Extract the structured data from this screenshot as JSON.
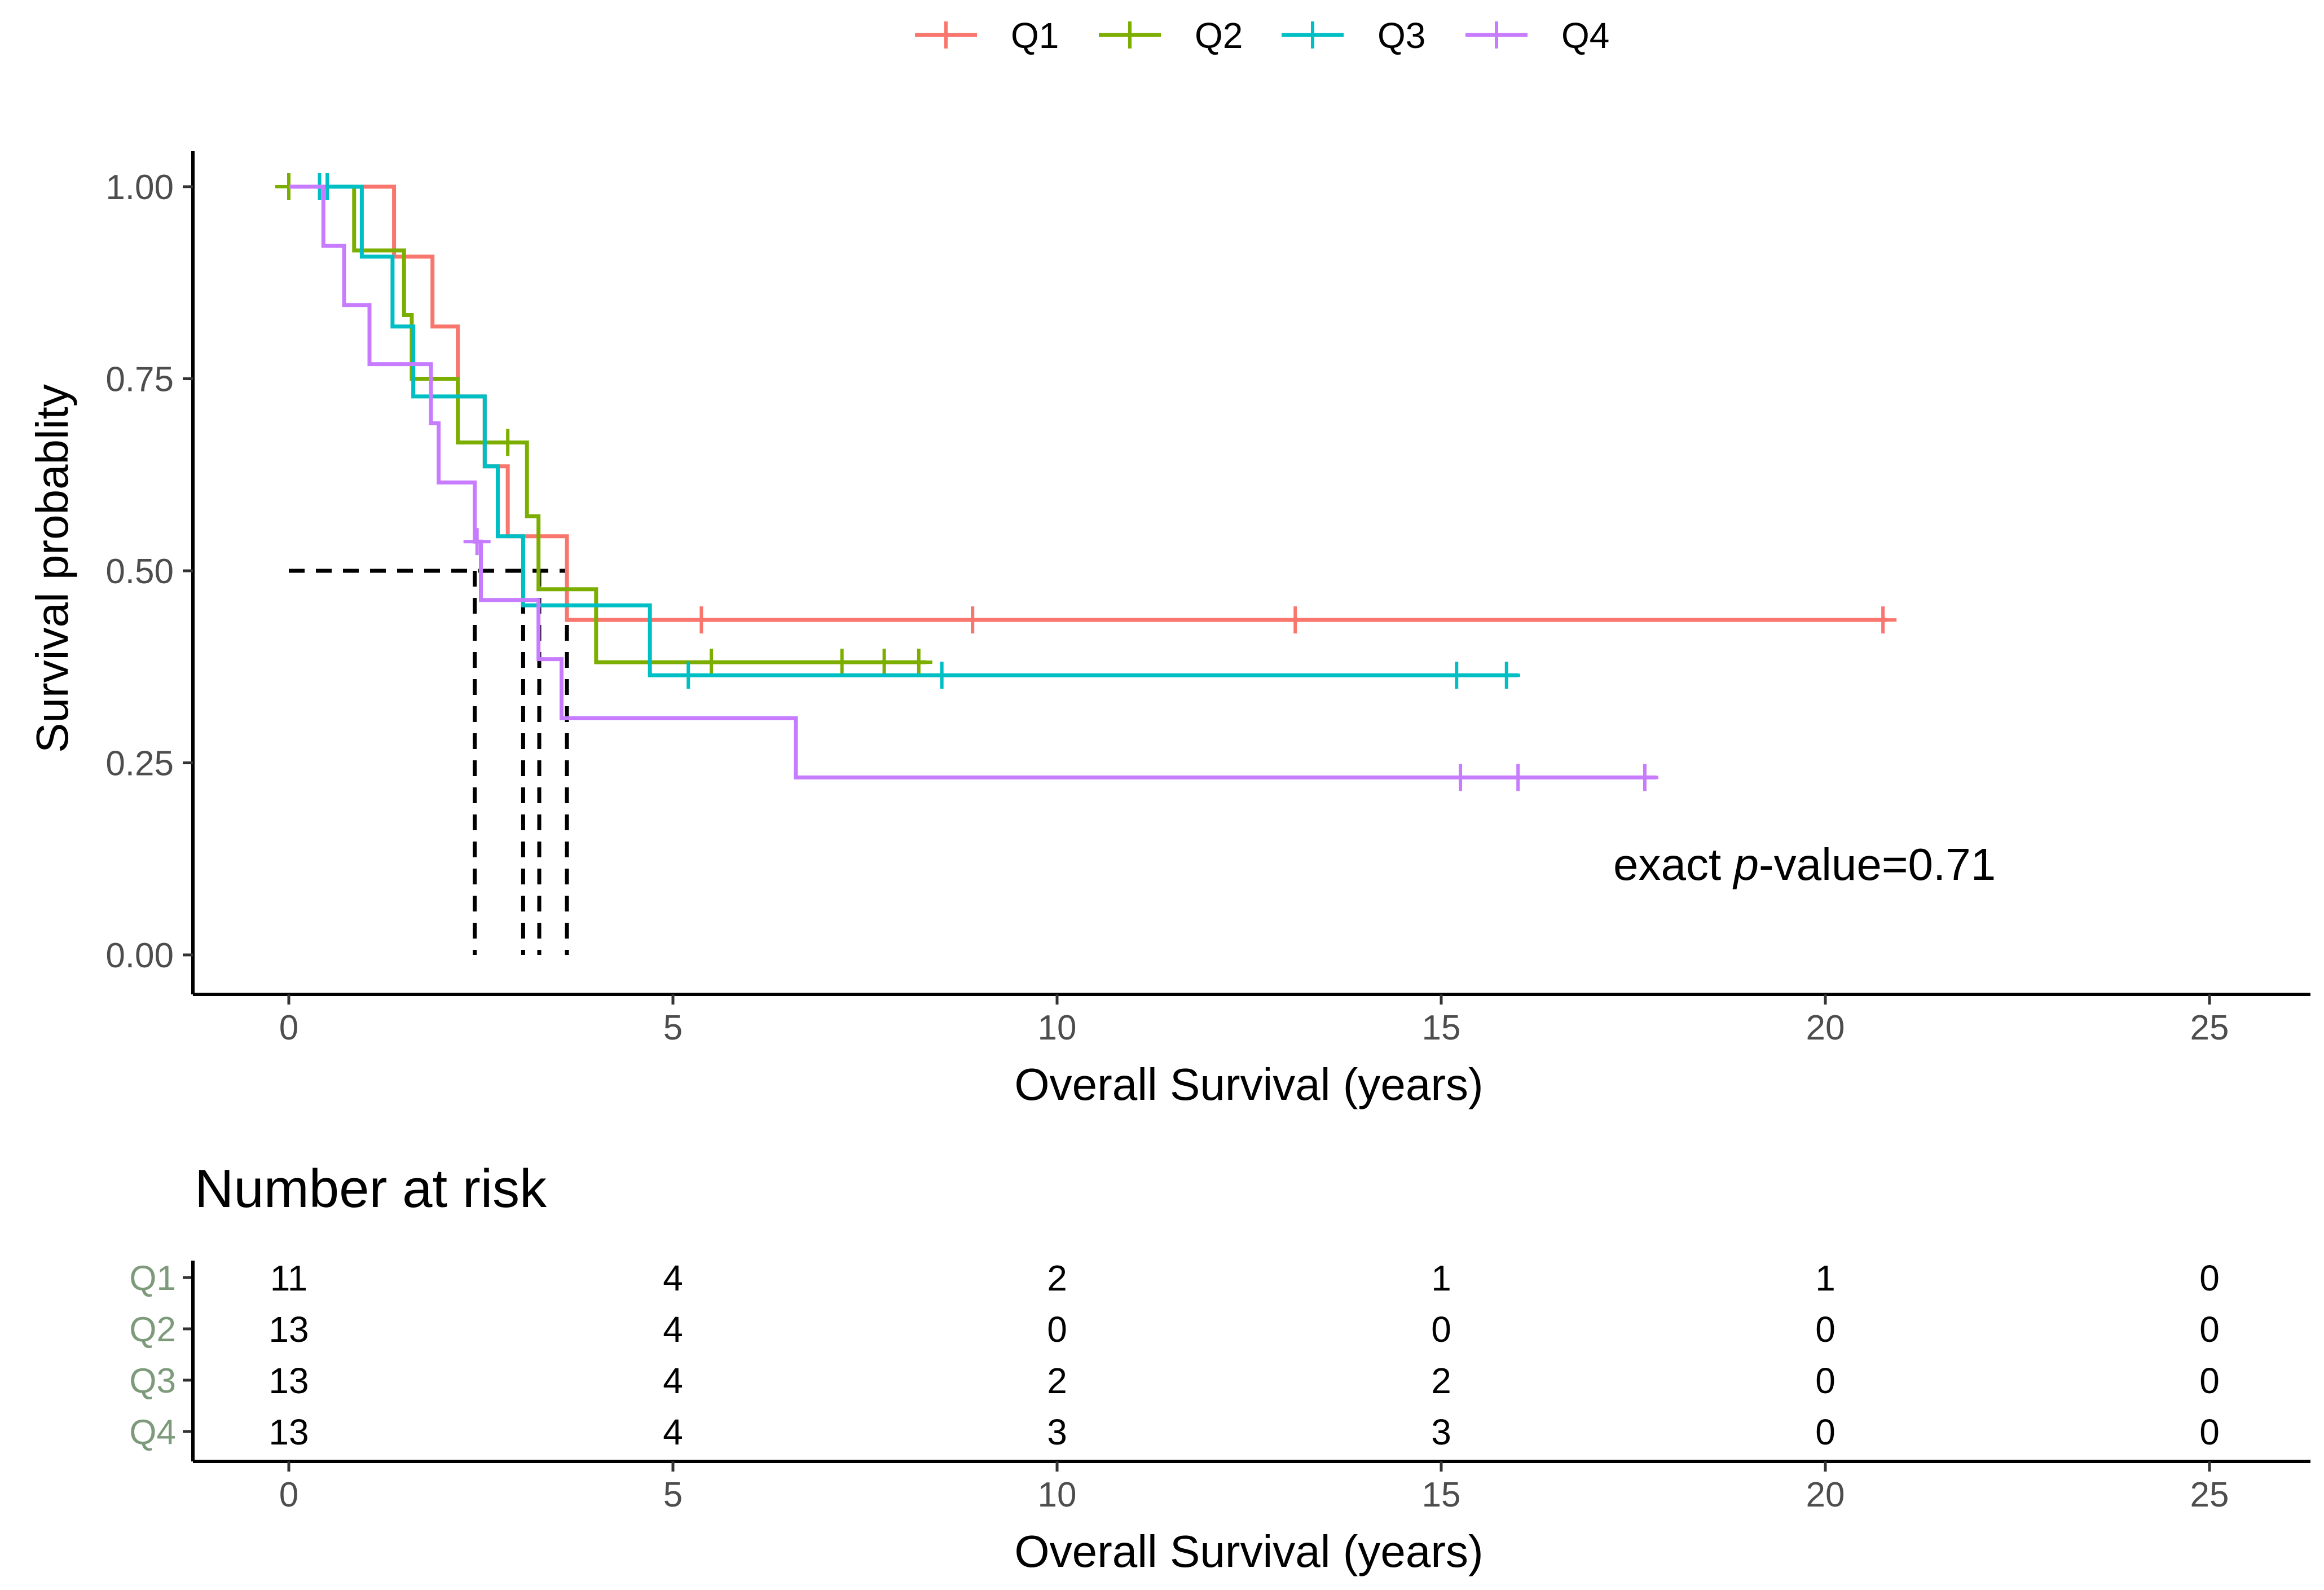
{
  "chart_data": {
    "type": "line",
    "subtype": "kaplan-meier",
    "xlabel": "Overall Survival (years)",
    "ylabel": "Survival probablity",
    "xlim": [
      -1.25,
      26.5
    ],
    "ylim": [
      -0.05,
      1.05
    ],
    "x_ticks": [
      0,
      5,
      10,
      15,
      20,
      25
    ],
    "y_ticks": [
      0.0,
      0.25,
      0.5,
      0.75,
      1.0
    ],
    "y_tick_labels": [
      "0.00",
      "0.25",
      "0.50",
      "0.75",
      "1.00"
    ],
    "grid": false,
    "legend_position": "top",
    "annotation": {
      "prefix": "exact ",
      "italic": "p",
      "suffix": "-value=0.71",
      "x": 22.5,
      "y": 0.115
    },
    "median_lines": [
      2.42,
      3.05,
      3.26,
      3.62
    ],
    "series": [
      {
        "name": "Q1",
        "color": "#F8766D",
        "steps": [
          [
            0,
            1.0
          ],
          [
            1.37,
            0.909
          ],
          [
            1.87,
            0.818
          ],
          [
            2.2,
            0.727
          ],
          [
            2.55,
            0.636
          ],
          [
            2.85,
            0.545
          ],
          [
            3.62,
            0.436
          ],
          [
            20.8,
            0.436
          ]
        ],
        "censors": [
          [
            5.37,
            0.436
          ],
          [
            8.9,
            0.436
          ],
          [
            13.1,
            0.436
          ],
          [
            20.75,
            0.436
          ]
        ]
      },
      {
        "name": "Q2",
        "color": "#7CAE00",
        "steps": [
          [
            0,
            1.0
          ],
          [
            0.85,
            0.917
          ],
          [
            1.5,
            0.833
          ],
          [
            1.6,
            0.75
          ],
          [
            2.2,
            0.667
          ],
          [
            3.1,
            0.571
          ],
          [
            3.25,
            0.476
          ],
          [
            4.0,
            0.381
          ],
          [
            8.3,
            0.381
          ]
        ],
        "censors": [
          [
            0,
            1.0
          ],
          [
            2.85,
            0.667
          ],
          [
            5.5,
            0.381
          ],
          [
            7.2,
            0.381
          ],
          [
            7.75,
            0.381
          ],
          [
            8.2,
            0.381
          ]
        ]
      },
      {
        "name": "Q3",
        "color": "#00BFC4",
        "steps": [
          [
            0,
            1.0
          ],
          [
            0.95,
            0.909
          ],
          [
            1.35,
            0.818
          ],
          [
            1.62,
            0.727
          ],
          [
            2.55,
            0.636
          ],
          [
            2.72,
            0.545
          ],
          [
            3.05,
            0.455
          ],
          [
            4.7,
            0.364
          ],
          [
            16.0,
            0.364
          ]
        ],
        "censors": [
          [
            0.4,
            1.0
          ],
          [
            0.5,
            1.0
          ],
          [
            5.2,
            0.364
          ],
          [
            8.5,
            0.364
          ],
          [
            15.2,
            0.364
          ],
          [
            15.85,
            0.364
          ]
        ]
      },
      {
        "name": "Q4",
        "color": "#C77CFF",
        "steps": [
          [
            0,
            1.0
          ],
          [
            0.45,
            0.923
          ],
          [
            0.72,
            0.846
          ],
          [
            1.05,
            0.769
          ],
          [
            1.85,
            0.692
          ],
          [
            1.95,
            0.615
          ],
          [
            2.42,
            0.538
          ],
          [
            2.5,
            0.462
          ],
          [
            3.25,
            0.385
          ],
          [
            3.55,
            0.308
          ],
          [
            6.6,
            0.231
          ],
          [
            17.8,
            0.231
          ]
        ],
        "censors": [
          [
            2.45,
            0.538
          ],
          [
            15.25,
            0.231
          ],
          [
            16.0,
            0.231
          ],
          [
            17.65,
            0.231
          ]
        ]
      }
    ],
    "risk_table": {
      "title": "Number at risk",
      "xlabel": "Overall Survival (years)",
      "times": [
        0,
        5,
        10,
        15,
        20,
        25
      ],
      "rows": [
        {
          "group": "Q1",
          "counts": [
            "11",
            "4",
            "2",
            "1",
            "1",
            "0"
          ]
        },
        {
          "group": "Q2",
          "counts": [
            "13",
            "4",
            "0",
            "0",
            "0",
            "0"
          ]
        },
        {
          "group": "Q3",
          "counts": [
            "13",
            "4",
            "2",
            "2",
            "0",
            "0"
          ]
        },
        {
          "group": "Q4",
          "counts": [
            "13",
            "4",
            "3",
            "3",
            "0",
            "0"
          ]
        }
      ]
    }
  }
}
